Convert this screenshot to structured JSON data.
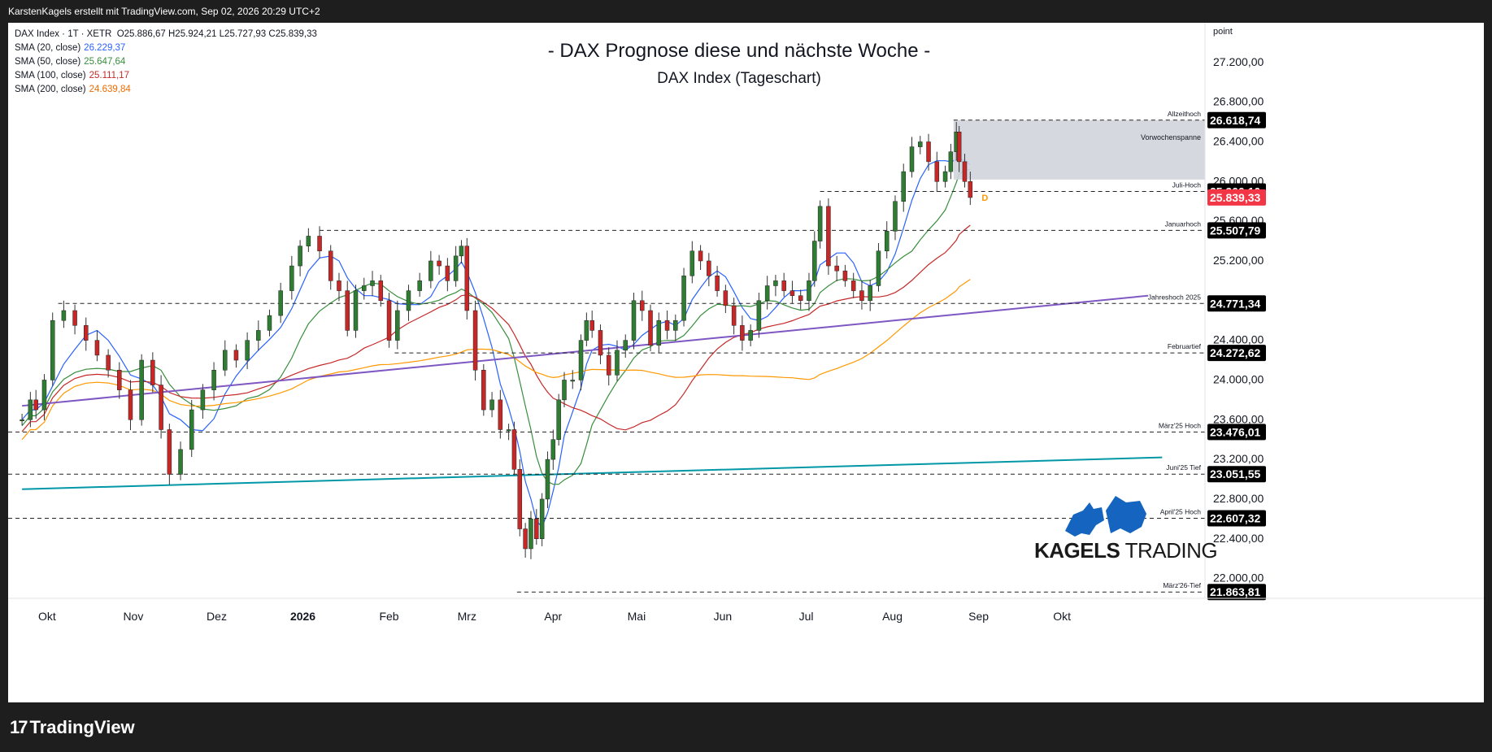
{
  "header": {
    "attribution": "KarstenKagels erstellt mit TradingView.com, Sep 02, 2026 20:29 UTC+2"
  },
  "legend": {
    "symbol": "DAX Index · 1T · XETR",
    "ohlc": "O25.886,67 H25.924,21 L25.727,93 C25.839,33",
    "indicators": [
      {
        "label": "SMA (20, close)",
        "value": "26.229,37",
        "color": "#2962ff"
      },
      {
        "label": "SMA (50, close)",
        "value": "25.647,64",
        "color": "#388e3c"
      },
      {
        "label": "SMA (100, close)",
        "value": "25.111,17",
        "color": "#c62828"
      },
      {
        "label": "SMA (200, close)",
        "value": "24.639,84",
        "color": "#ff9800"
      }
    ]
  },
  "branding": {
    "footer_logo": "TradingView",
    "watermark": "KAGELS TRADING",
    "watermark_part1": "KAGELS",
    "watermark_part2": " TRADING"
  },
  "chart_data": {
    "type": "candlestick",
    "title": "- DAX Prognose diese und nächste Woche -",
    "subtitle": "DAX Index (Tageschart)",
    "unit_label": "point",
    "ylim": [
      21800,
      27600
    ],
    "y_ticks": [
      "27.200,00",
      "26.800,00",
      "26.400,00",
      "26.000,00",
      "25.600,00",
      "25.200,00",
      "24.800,00",
      "24.400,00",
      "24.000,00",
      "23.600,00",
      "23.200,00",
      "22.800,00",
      "22.400,00",
      "22.000,00"
    ],
    "y_tick_values": [
      27200,
      26800,
      26400,
      26000,
      25600,
      25200,
      24800,
      24400,
      24000,
      23600,
      23200,
      22800,
      22400,
      22000
    ],
    "x_ticks": [
      {
        "label": "Okt",
        "bold": false,
        "d": 14
      },
      {
        "label": "Nov",
        "bold": false,
        "d": 45
      },
      {
        "label": "Dez",
        "bold": false,
        "d": 75
      },
      {
        "label": "2026",
        "bold": true,
        "d": 106
      },
      {
        "label": "Feb",
        "bold": false,
        "d": 137
      },
      {
        "label": "Mrz",
        "bold": false,
        "d": 165
      },
      {
        "label": "Apr",
        "bold": false,
        "d": 196
      },
      {
        "label": "Mai",
        "bold": false,
        "d": 226
      },
      {
        "label": "Jun",
        "bold": false,
        "d": 257
      },
      {
        "label": "Jul",
        "bold": false,
        "d": 287
      },
      {
        "label": "Aug",
        "bold": false,
        "d": 318
      },
      {
        "label": "Sep",
        "bold": false,
        "d": 349
      },
      {
        "label": "Okt",
        "bold": false,
        "d": 379
      }
    ],
    "levels": [
      {
        "name": "Allzeithoch",
        "value": 26618.74,
        "label": "26.618,74",
        "d_start": 340
      },
      {
        "name": "Juli-Hoch",
        "value": 25900.1,
        "label": "25.900,10",
        "d_start": 292
      },
      {
        "name": "Januarhoch",
        "value": 25507.79,
        "label": "25.507,79",
        "d_start": 112
      },
      {
        "name": "Jahreshoch 2025",
        "value": 24771.34,
        "label": "24.771,34",
        "d_start": 18
      },
      {
        "name": "Februartief",
        "value": 24272.62,
        "label": "24.272,62",
        "d_start": 139
      },
      {
        "name": "März'25 Hoch",
        "value": 23476.01,
        "label": "23.476,01",
        "d_start": 0
      },
      {
        "name": "Juni'25 Tief",
        "value": 23051.55,
        "label": "23.051,55",
        "d_start": 0
      },
      {
        "name": "April'25 Hoch",
        "value": 22607.32,
        "label": "22.607,32",
        "d_start": 0
      },
      {
        "name": "März'26-Tief",
        "value": 21863.81,
        "label": "21.863,81",
        "d_start": 183
      }
    ],
    "last_price": {
      "value": 25839.33,
      "label": "25.839,33"
    },
    "box": {
      "label": "Vorwochenspanne",
      "d_start": 340,
      "top": 26618.74,
      "bottom": 26020
    },
    "trendlines": [
      {
        "name": "purple",
        "color": "#7e57c2",
        "p1": [
          5,
          23740
        ],
        "p2": [
          410,
          24850
        ]
      },
      {
        "name": "teal",
        "color": "#0097a7",
        "p1": [
          5,
          22900
        ],
        "p2": [
          415,
          23220
        ]
      }
    ],
    "marker": {
      "text": "D",
      "color": "#ff9800"
    },
    "close_points": [
      [
        5,
        23600
      ],
      [
        8,
        23800
      ],
      [
        10,
        23700
      ],
      [
        13,
        24000
      ],
      [
        16,
        24600
      ],
      [
        20,
        24700
      ],
      [
        24,
        24550
      ],
      [
        28,
        24400
      ],
      [
        32,
        24250
      ],
      [
        36,
        24100
      ],
      [
        40,
        23900
      ],
      [
        44,
        23600
      ],
      [
        48,
        24200
      ],
      [
        52,
        23950
      ],
      [
        55,
        23500
      ],
      [
        58,
        23050
      ],
      [
        62,
        23300
      ],
      [
        66,
        23700
      ],
      [
        70,
        23900
      ],
      [
        74,
        24100
      ],
      [
        78,
        24300
      ],
      [
        82,
        24200
      ],
      [
        86,
        24400
      ],
      [
        90,
        24500
      ],
      [
        94,
        24650
      ],
      [
        98,
        24900
      ],
      [
        102,
        25150
      ],
      [
        105,
        25350
      ],
      [
        108,
        25450
      ],
      [
        112,
        25300
      ],
      [
        116,
        25000
      ],
      [
        119,
        24900
      ],
      [
        122,
        24500
      ],
      [
        125,
        24900
      ],
      [
        128,
        24950
      ],
      [
        131,
        25000
      ],
      [
        134,
        24800
      ],
      [
        137,
        24400
      ],
      [
        140,
        24700
      ],
      [
        144,
        24900
      ],
      [
        148,
        25000
      ],
      [
        152,
        25200
      ],
      [
        155,
        25150
      ],
      [
        158,
        25000
      ],
      [
        161,
        25250
      ],
      [
        163,
        25350
      ],
      [
        165,
        24700
      ],
      [
        168,
        24100
      ],
      [
        171,
        23700
      ],
      [
        174,
        23800
      ],
      [
        177,
        23500
      ],
      [
        180,
        23500
      ],
      [
        182,
        23100
      ],
      [
        184,
        22500
      ],
      [
        186,
        22300
      ],
      [
        188,
        22600
      ],
      [
        190,
        22400
      ],
      [
        192,
        22800
      ],
      [
        194,
        23200
      ],
      [
        196,
        23400
      ],
      [
        198,
        23800
      ],
      [
        200,
        24000
      ],
      [
        203,
        24000
      ],
      [
        206,
        24400
      ],
      [
        208,
        24600
      ],
      [
        210,
        24500
      ],
      [
        213,
        24250
      ],
      [
        216,
        24050
      ],
      [
        219,
        24300
      ],
      [
        222,
        24400
      ],
      [
        225,
        24800
      ],
      [
        228,
        24700
      ],
      [
        231,
        24350
      ],
      [
        234,
        24600
      ],
      [
        237,
        24500
      ],
      [
        240,
        24600
      ],
      [
        243,
        25050
      ],
      [
        246,
        25300
      ],
      [
        249,
        25200
      ],
      [
        252,
        25050
      ],
      [
        255,
        24900
      ],
      [
        258,
        24750
      ],
      [
        261,
        24550
      ],
      [
        264,
        24400
      ],
      [
        267,
        24500
      ],
      [
        270,
        24800
      ],
      [
        273,
        24950
      ],
      [
        276,
        25000
      ],
      [
        279,
        24900
      ],
      [
        282,
        24850
      ],
      [
        285,
        24800
      ],
      [
        288,
        25000
      ],
      [
        290,
        25400
      ],
      [
        292,
        25750
      ],
      [
        295,
        25150
      ],
      [
        298,
        25100
      ],
      [
        301,
        25000
      ],
      [
        304,
        24900
      ],
      [
        307,
        24800
      ],
      [
        310,
        24950
      ],
      [
        313,
        25300
      ],
      [
        316,
        25500
      ],
      [
        319,
        25800
      ],
      [
        322,
        26100
      ],
      [
        325,
        26350
      ],
      [
        328,
        26400
      ],
      [
        331,
        26200
      ],
      [
        334,
        26000
      ],
      [
        337,
        26100
      ],
      [
        339,
        26300
      ],
      [
        341,
        26500
      ],
      [
        342,
        26200
      ],
      [
        344,
        26000
      ],
      [
        346,
        25839
      ]
    ]
  }
}
